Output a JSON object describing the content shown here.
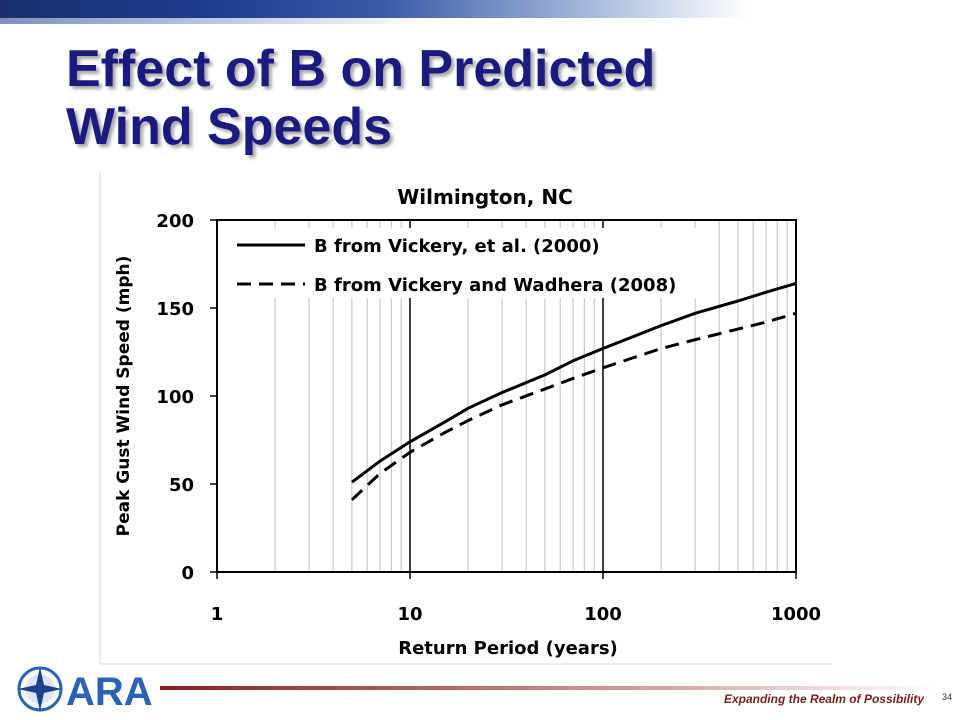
{
  "slide": {
    "title_line1": "Effect of B on Predicted",
    "title_line2": "Wind Speeds",
    "tagline": "Expanding the Realm of Possibility",
    "page_number": "34",
    "logo_text": "ARA",
    "colors": {
      "title": "#1a1a80",
      "accent_red": "#8b1c1c",
      "logo_blue": "#2a62b5"
    }
  },
  "chart_data": {
    "type": "line",
    "title": "Wilmington, NC",
    "xlabel": "Return Period (years)",
    "ylabel": "Peak Gust Wind Speed (mph)",
    "x_scale": "log",
    "xlim": [
      1,
      1000
    ],
    "ylim": [
      0,
      200
    ],
    "x_ticks": [
      1,
      10,
      100,
      1000
    ],
    "x_tick_labels": [
      "1",
      "10",
      "100",
      "1000"
    ],
    "y_ticks": [
      0,
      50,
      100,
      150,
      200
    ],
    "y_tick_labels": [
      "0",
      "50",
      "100",
      "150",
      "200"
    ],
    "grid": true,
    "legend_position": "top-left",
    "series": [
      {
        "name": "B from Vickery, et al. (2000)",
        "style": "solid",
        "x": [
          5,
          7,
          10,
          15,
          20,
          30,
          50,
          70,
          100,
          200,
          300,
          500,
          700,
          1000
        ],
        "y": [
          51,
          63,
          74,
          85,
          93,
          102,
          112,
          120,
          127,
          140,
          147,
          154,
          159,
          164
        ]
      },
      {
        "name": "B from Vickery and Wadhera (2008)",
        "style": "dashed",
        "x": [
          5,
          7,
          10,
          15,
          20,
          30,
          50,
          70,
          100,
          200,
          300,
          500,
          700,
          1000
        ],
        "y": [
          41,
          56,
          68,
          79,
          86,
          95,
          104,
          110,
          116,
          127,
          132,
          138,
          142,
          147
        ]
      }
    ]
  }
}
